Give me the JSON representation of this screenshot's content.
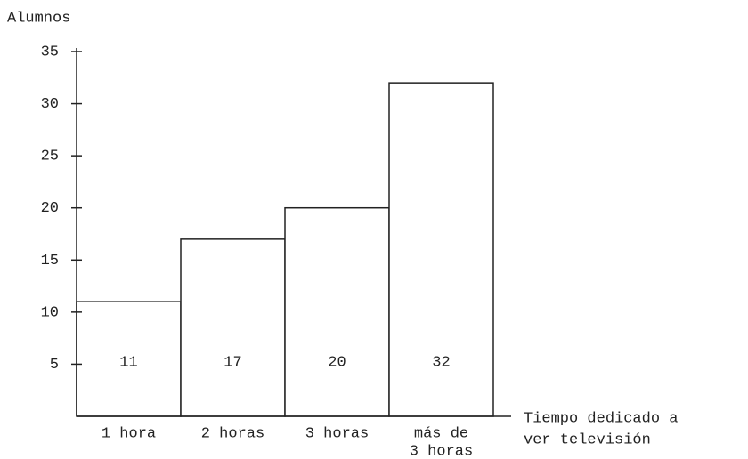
{
  "chart_data": {
    "type": "bar",
    "ylabel": "Alumnos",
    "xlabel": [
      "Tiempo dedicado a",
      "ver televisión"
    ],
    "categories": [
      [
        "1 hora"
      ],
      [
        "2 horas"
      ],
      [
        "3 horas"
      ],
      [
        "más de",
        "3 horas"
      ]
    ],
    "values": [
      11,
      17,
      20,
      32
    ],
    "color": "#ffffff",
    "ylim": [
      0,
      35
    ],
    "yticks": [
      5,
      10,
      15,
      20,
      25,
      30,
      35
    ]
  }
}
